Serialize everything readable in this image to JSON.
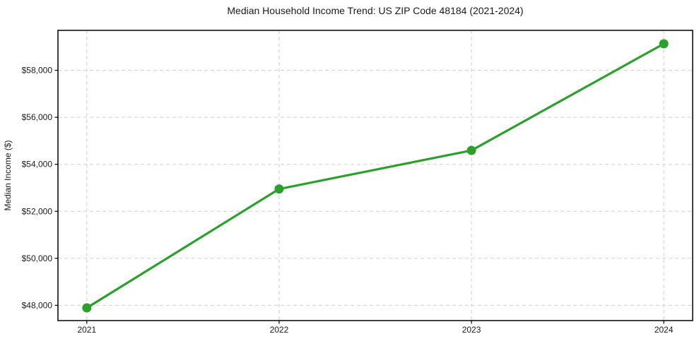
{
  "chart_data": {
    "type": "line",
    "title": "Median Household Income Trend: US ZIP Code 48184 (2021-2024)",
    "xlabel": "",
    "ylabel": "Median Income ($)",
    "x": [
      2021,
      2022,
      2023,
      2024
    ],
    "series": [
      {
        "name": "Median Household Income",
        "values": [
          47890,
          52950,
          54590,
          59130
        ]
      }
    ],
    "x_tick_labels": [
      "2021",
      "2022",
      "2023",
      "2024"
    ],
    "y_ticks": [
      48000,
      50000,
      52000,
      54000,
      56000,
      58000
    ],
    "y_tick_labels": [
      "$48,000",
      "$50,000",
      "$52,000",
      "$54,000",
      "$56,000",
      "$58,000"
    ],
    "xlim": [
      2020.85,
      2024.15
    ],
    "ylim": [
      47350,
      59700
    ],
    "grid": true,
    "grid_style": "dashed",
    "legend_position": "none",
    "line_color": "#2ca02c",
    "marker": "circle",
    "marker_color": "#2ca02c",
    "grid_color": "#d0d0d0",
    "axis_color": "#000000",
    "text_color": "#1a1a1a",
    "background_color": "#ffffff"
  }
}
